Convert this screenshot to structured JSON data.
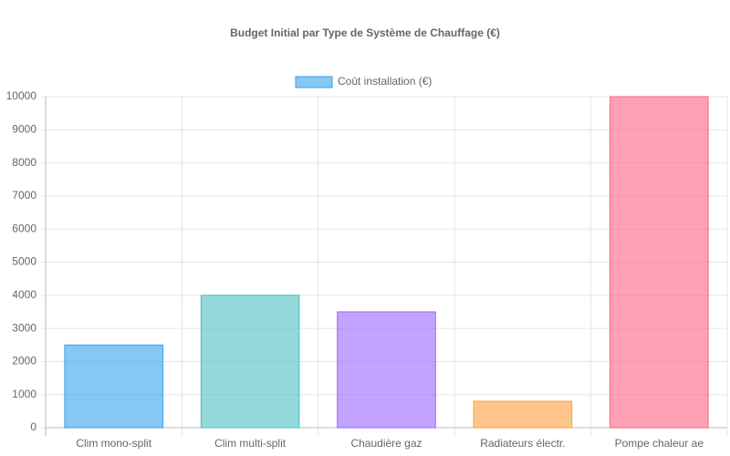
{
  "chart_data": {
    "type": "bar",
    "title": "Budget Initial par Type de Système de Chauffage (€)",
    "categories": [
      "Clim mono-split",
      "Clim multi-split",
      "Chaudière gaz",
      "Radiateurs électr.",
      "Pompe chaleur ae"
    ],
    "series": [
      {
        "name": "Coût installation (€)",
        "colors": [
          "#36a2eb",
          "#4bc0c0",
          "#9966ff",
          "#ff9f40",
          "#ff6384"
        ],
        "values": [
          2500,
          4000,
          3500,
          800,
          10000
        ]
      }
    ],
    "ylim": [
      0,
      10000
    ],
    "yticks": [
      0,
      1000,
      2000,
      3000,
      4000,
      5000,
      6000,
      7000,
      8000,
      9000,
      10000
    ],
    "grid": true,
    "legend": "top"
  }
}
